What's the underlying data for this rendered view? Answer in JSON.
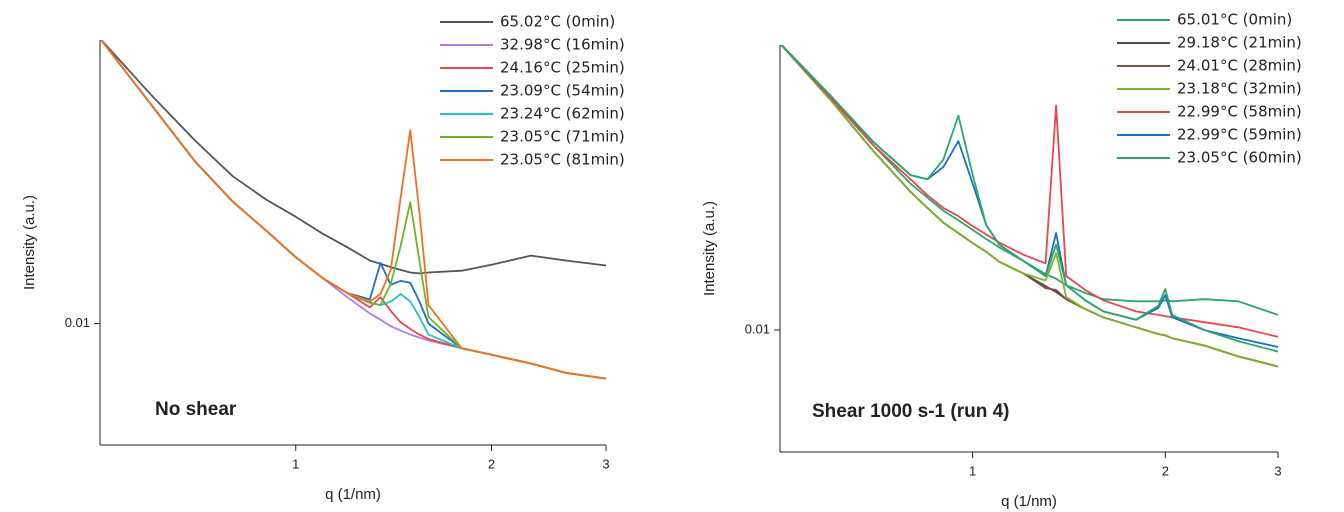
{
  "chart_data": [
    {
      "type": "line",
      "xlabel": "q (1/nm)",
      "ylabel": "Intensity (a.u.)",
      "annotation": "No shear",
      "xlog": true,
      "ylog": true,
      "xlim": [
        0.5,
        3
      ],
      "ylim": [
        0.004,
        0.085
      ],
      "xticks": [
        1,
        2,
        3
      ],
      "yticks": [
        0.01
      ],
      "x": [
        0.5,
        0.6,
        0.7,
        0.8,
        0.9,
        1.0,
        1.1,
        1.2,
        1.3,
        1.35,
        1.4,
        1.45,
        1.5,
        1.55,
        1.6,
        1.8,
        2.0,
        2.3,
        2.6,
        3.0
      ],
      "series": [
        {
          "name": "65.02°C (0min)",
          "color": "#555555",
          "values": [
            0.086,
            0.056,
            0.0398,
            0.0304,
            0.0255,
            0.0224,
            0.0197,
            0.0178,
            0.0161,
            0.0157,
            0.0153,
            0.015,
            0.0147,
            0.0146,
            0.0147,
            0.0149,
            0.0156,
            0.0167,
            0.0161,
            0.0155
          ]
        },
        {
          "name": "32.98°C (16min)",
          "color": "#b57cdb",
          "values": [
            0.086,
            0.052,
            0.034,
            0.0251,
            0.0202,
            0.0165,
            0.0141,
            0.0122,
            0.0108,
            0.0103,
            0.0098,
            0.0095,
            0.0092,
            0.009,
            0.0088,
            0.0083,
            0.0079,
            0.0074,
            0.0069,
            0.0066
          ]
        },
        {
          "name": "24.16°C (25min)",
          "color": "#e8474f",
          "values": [
            0.086,
            0.052,
            0.034,
            0.0251,
            0.0202,
            0.0165,
            0.0141,
            0.0126,
            0.0113,
            0.0122,
            0.011,
            0.0101,
            0.0096,
            0.0092,
            0.0089,
            0.0083,
            0.0079,
            0.0074,
            0.0069,
            0.0066
          ]
        },
        {
          "name": "23.09°C (54min)",
          "color": "#1f6fc5",
          "values": [
            0.086,
            0.052,
            0.034,
            0.0251,
            0.0202,
            0.0165,
            0.0141,
            0.0126,
            0.012,
            0.0158,
            0.0134,
            0.0138,
            0.0136,
            0.0118,
            0.01,
            0.0083,
            0.0079,
            0.0074,
            0.0069,
            0.0066
          ]
        },
        {
          "name": "23.24°C (62min)",
          "color": "#21c4c4",
          "values": [
            0.086,
            0.052,
            0.034,
            0.0251,
            0.0202,
            0.0165,
            0.0141,
            0.0126,
            0.0117,
            0.0115,
            0.0118,
            0.0125,
            0.0118,
            0.0105,
            0.0092,
            0.0083,
            0.0079,
            0.0074,
            0.0069,
            0.0066
          ]
        },
        {
          "name": "23.05°C (71min)",
          "color": "#6ab52a",
          "values": [
            0.086,
            0.052,
            0.034,
            0.0251,
            0.0202,
            0.0165,
            0.0141,
            0.0126,
            0.0117,
            0.0115,
            0.0135,
            0.018,
            0.025,
            0.016,
            0.0105,
            0.0083,
            0.0079,
            0.0074,
            0.0069,
            0.0066
          ]
        },
        {
          "name": "23.05°C (81min)",
          "color": "#f37021",
          "values": [
            0.086,
            0.052,
            0.034,
            0.0251,
            0.0202,
            0.0165,
            0.0141,
            0.0126,
            0.0118,
            0.0125,
            0.015,
            0.026,
            0.043,
            0.023,
            0.0115,
            0.0083,
            0.0079,
            0.0074,
            0.0069,
            0.0066
          ]
        }
      ]
    },
    {
      "type": "line",
      "xlabel": "q (1/nm)",
      "ylabel": "Intensity (a.u.)",
      "annotation": "Shear 1000 s-1 (run 4)",
      "xlog": true,
      "ylog": true,
      "xlim": [
        0.5,
        3
      ],
      "ylim": [
        0.004,
        0.085
      ],
      "xticks": [
        1,
        2,
        3
      ],
      "yticks": [
        0.01
      ],
      "x": [
        0.5,
        0.6,
        0.7,
        0.8,
        0.85,
        0.9,
        0.95,
        1.0,
        1.05,
        1.1,
        1.2,
        1.3,
        1.35,
        1.4,
        1.5,
        1.6,
        1.8,
        1.95,
        2.0,
        2.05,
        2.3,
        2.6,
        3.0
      ],
      "series": [
        {
          "name": "65.01°C (0min)",
          "color": "#2aa869",
          "values": [
            0.086,
            0.058,
            0.04,
            0.03,
            0.027,
            0.0245,
            0.0228,
            0.0212,
            0.0198,
            0.0186,
            0.0168,
            0.0152,
            0.0147,
            0.014,
            0.0132,
            0.0126,
            0.0124,
            0.0124,
            0.0125,
            0.0124,
            0.0126,
            0.0124,
            0.0112
          ]
        },
        {
          "name": "29.18°C (21min)",
          "color": "#4a4a4a",
          "values": [
            0.086,
            0.0562,
            0.0383,
            0.0282,
            0.025,
            0.0224,
            0.0207,
            0.0192,
            0.018,
            0.0167,
            0.0153,
            0.0139,
            0.0133,
            0.0126,
            0.0117,
            0.011,
            0.0102,
            0.0097,
            0.0096,
            0.0094,
            0.0089,
            0.0082,
            0.0076
          ]
        },
        {
          "name": "24.01°C (28min)",
          "color": "#7a5040",
          "values": [
            0.086,
            0.0562,
            0.0383,
            0.0282,
            0.025,
            0.0224,
            0.0207,
            0.0192,
            0.018,
            0.0167,
            0.0153,
            0.0137,
            0.0135,
            0.0126,
            0.0117,
            0.011,
            0.0102,
            0.0097,
            0.0096,
            0.0094,
            0.0089,
            0.0082,
            0.0076
          ]
        },
        {
          "name": "23.18°C (32min)",
          "color": "#7cb52a",
          "values": [
            0.086,
            0.0562,
            0.0383,
            0.0282,
            0.025,
            0.0224,
            0.0207,
            0.0192,
            0.018,
            0.0167,
            0.0153,
            0.0145,
            0.0178,
            0.0128,
            0.0117,
            0.011,
            0.0102,
            0.0097,
            0.0096,
            0.0094,
            0.0089,
            0.0082,
            0.0076
          ]
        },
        {
          "name": "22.99°C (58min)",
          "color": "#e8474f",
          "values": [
            0.086,
            0.057,
            0.04,
            0.031,
            0.0275,
            0.025,
            0.0235,
            0.0218,
            0.0205,
            0.0193,
            0.0176,
            0.0165,
            0.054,
            0.015,
            0.0135,
            0.0125,
            0.0115,
            0.0112,
            0.0111,
            0.011,
            0.0106,
            0.0102,
            0.0095
          ]
        },
        {
          "name": "22.99°C (59min)",
          "color": "#1f6fc5",
          "values": [
            0.086,
            0.058,
            0.041,
            0.032,
            0.031,
            0.034,
            0.0413,
            0.03,
            0.022,
            0.019,
            0.0168,
            0.015,
            0.0207,
            0.014,
            0.0125,
            0.0115,
            0.0108,
            0.0118,
            0.013,
            0.011,
            0.01,
            0.0094,
            0.0088
          ]
        },
        {
          "name": "23.05°C (60min)",
          "color": "#2aa869",
          "values": [
            0.086,
            0.058,
            0.041,
            0.032,
            0.031,
            0.036,
            0.05,
            0.032,
            0.022,
            0.019,
            0.0168,
            0.015,
            0.019,
            0.014,
            0.0125,
            0.0115,
            0.0108,
            0.012,
            0.0136,
            0.0112,
            0.01,
            0.0092,
            0.0085
          ]
        }
      ]
    }
  ]
}
